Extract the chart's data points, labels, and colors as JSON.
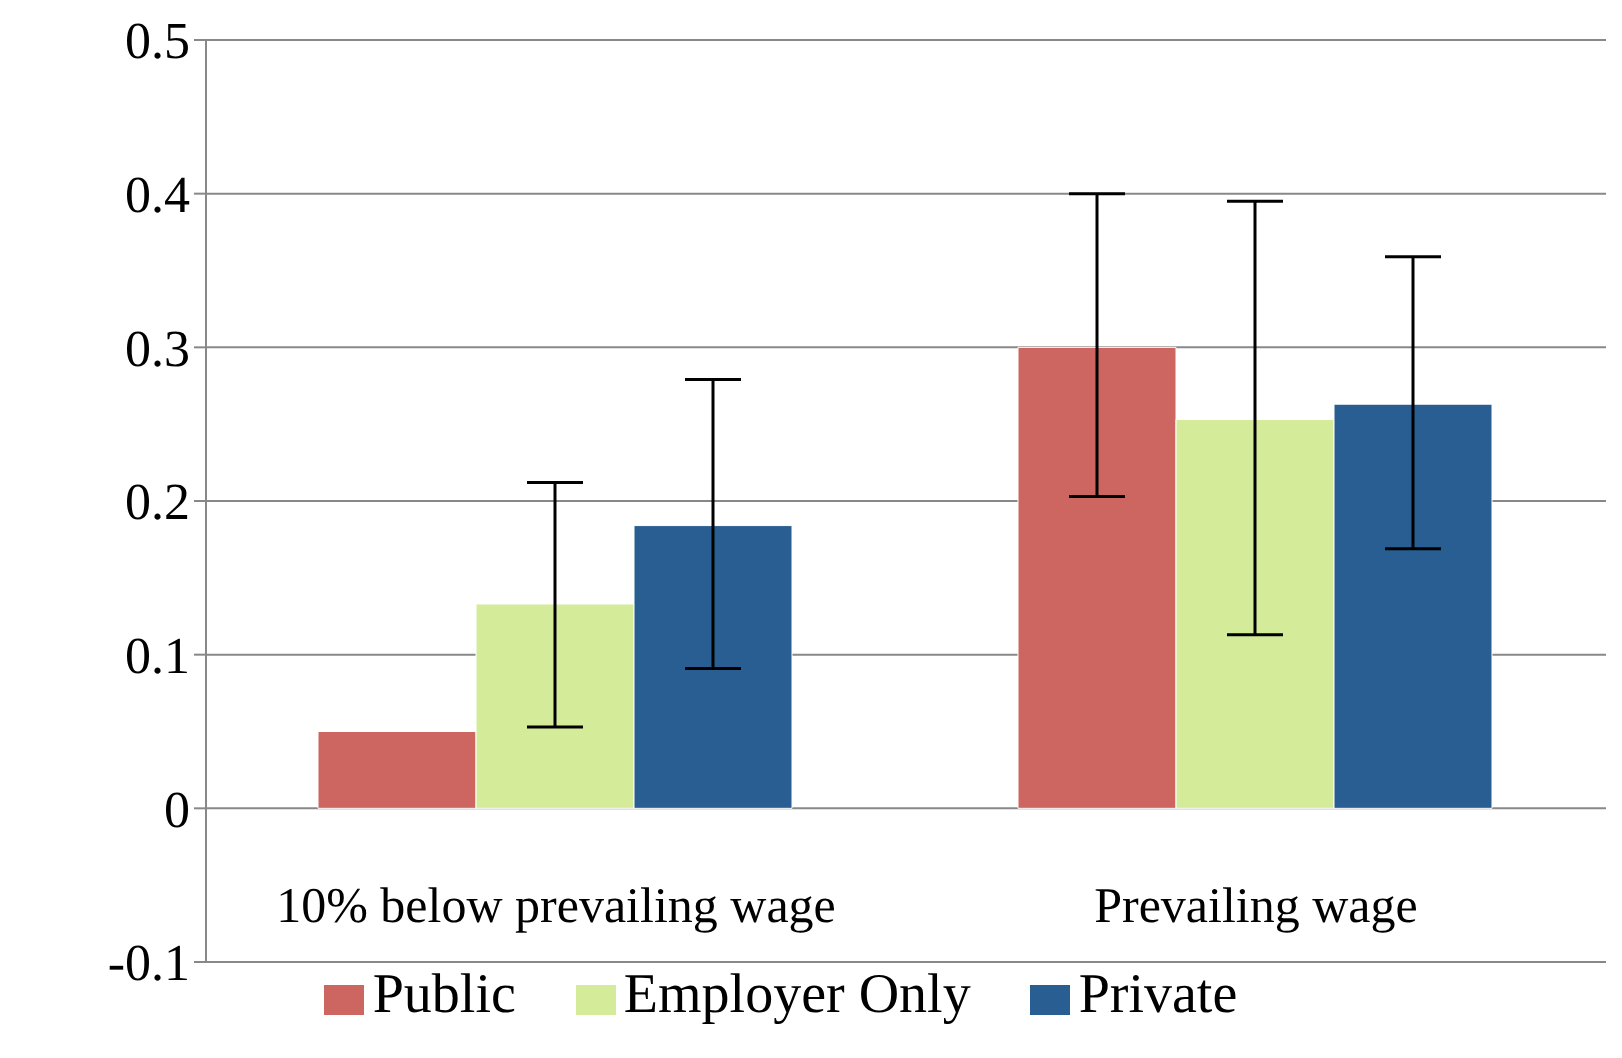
{
  "chart_data": {
    "type": "bar",
    "categories": [
      "10% below prevailing wage",
      "Prevailing wage"
    ],
    "series": [
      {
        "name": "Public",
        "color": "#cd6660",
        "values": [
          0.05,
          0.3
        ],
        "errors": [
          null,
          [
            0.203,
            0.4
          ]
        ]
      },
      {
        "name": "Employer Only",
        "color": "#d4ec9a",
        "values": [
          0.133,
          0.253
        ],
        "errors": [
          [
            0.053,
            0.212
          ],
          [
            0.113,
            0.395
          ]
        ]
      },
      {
        "name": "Private",
        "color": "#285e91",
        "values": [
          0.184,
          0.263
        ],
        "errors": [
          [
            0.091,
            0.279
          ],
          [
            0.169,
            0.359
          ]
        ]
      }
    ],
    "ylim": [
      -0.1,
      0.5
    ],
    "yticks": [
      -0.1,
      0,
      0.1,
      0.2,
      0.3,
      0.4,
      0.5
    ],
    "grid": "y",
    "legend": "bottom"
  }
}
